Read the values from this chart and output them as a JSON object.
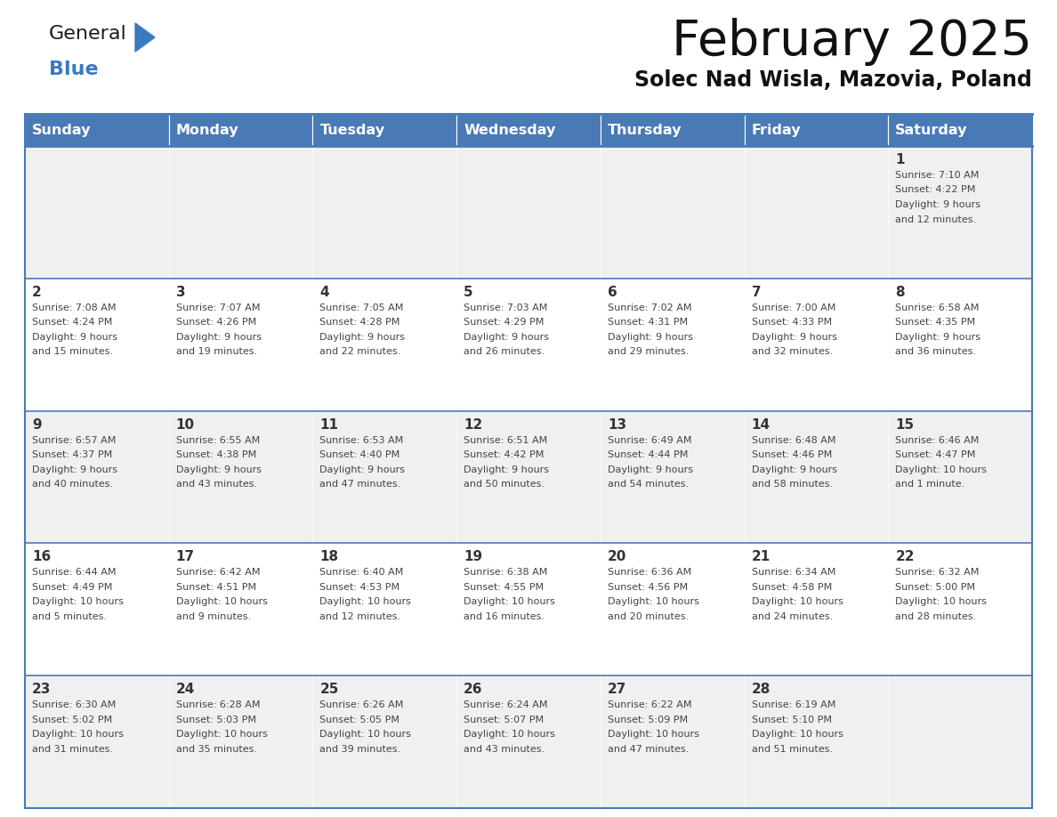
{
  "title": "February 2025",
  "subtitle": "Solec Nad Wisla, Mazovia, Poland",
  "header_bg": "#4a7ab5",
  "header_text_color": "#ffffff",
  "days_of_week": [
    "Sunday",
    "Monday",
    "Tuesday",
    "Wednesday",
    "Thursday",
    "Friday",
    "Saturday"
  ],
  "row_bg_odd": "#f0f0f0",
  "row_bg_even": "#ffffff",
  "cell_border_color": "#4a7ab5",
  "day_number_color": "#333333",
  "info_text_color": "#444444",
  "calendar_data": [
    [
      {
        "day": null,
        "info": ""
      },
      {
        "day": null,
        "info": ""
      },
      {
        "day": null,
        "info": ""
      },
      {
        "day": null,
        "info": ""
      },
      {
        "day": null,
        "info": ""
      },
      {
        "day": null,
        "info": ""
      },
      {
        "day": 1,
        "info": "Sunrise: 7:10 AM\nSunset: 4:22 PM\nDaylight: 9 hours\nand 12 minutes."
      }
    ],
    [
      {
        "day": 2,
        "info": "Sunrise: 7:08 AM\nSunset: 4:24 PM\nDaylight: 9 hours\nand 15 minutes."
      },
      {
        "day": 3,
        "info": "Sunrise: 7:07 AM\nSunset: 4:26 PM\nDaylight: 9 hours\nand 19 minutes."
      },
      {
        "day": 4,
        "info": "Sunrise: 7:05 AM\nSunset: 4:28 PM\nDaylight: 9 hours\nand 22 minutes."
      },
      {
        "day": 5,
        "info": "Sunrise: 7:03 AM\nSunset: 4:29 PM\nDaylight: 9 hours\nand 26 minutes."
      },
      {
        "day": 6,
        "info": "Sunrise: 7:02 AM\nSunset: 4:31 PM\nDaylight: 9 hours\nand 29 minutes."
      },
      {
        "day": 7,
        "info": "Sunrise: 7:00 AM\nSunset: 4:33 PM\nDaylight: 9 hours\nand 32 minutes."
      },
      {
        "day": 8,
        "info": "Sunrise: 6:58 AM\nSunset: 4:35 PM\nDaylight: 9 hours\nand 36 minutes."
      }
    ],
    [
      {
        "day": 9,
        "info": "Sunrise: 6:57 AM\nSunset: 4:37 PM\nDaylight: 9 hours\nand 40 minutes."
      },
      {
        "day": 10,
        "info": "Sunrise: 6:55 AM\nSunset: 4:38 PM\nDaylight: 9 hours\nand 43 minutes."
      },
      {
        "day": 11,
        "info": "Sunrise: 6:53 AM\nSunset: 4:40 PM\nDaylight: 9 hours\nand 47 minutes."
      },
      {
        "day": 12,
        "info": "Sunrise: 6:51 AM\nSunset: 4:42 PM\nDaylight: 9 hours\nand 50 minutes."
      },
      {
        "day": 13,
        "info": "Sunrise: 6:49 AM\nSunset: 4:44 PM\nDaylight: 9 hours\nand 54 minutes."
      },
      {
        "day": 14,
        "info": "Sunrise: 6:48 AM\nSunset: 4:46 PM\nDaylight: 9 hours\nand 58 minutes."
      },
      {
        "day": 15,
        "info": "Sunrise: 6:46 AM\nSunset: 4:47 PM\nDaylight: 10 hours\nand 1 minute."
      }
    ],
    [
      {
        "day": 16,
        "info": "Sunrise: 6:44 AM\nSunset: 4:49 PM\nDaylight: 10 hours\nand 5 minutes."
      },
      {
        "day": 17,
        "info": "Sunrise: 6:42 AM\nSunset: 4:51 PM\nDaylight: 10 hours\nand 9 minutes."
      },
      {
        "day": 18,
        "info": "Sunrise: 6:40 AM\nSunset: 4:53 PM\nDaylight: 10 hours\nand 12 minutes."
      },
      {
        "day": 19,
        "info": "Sunrise: 6:38 AM\nSunset: 4:55 PM\nDaylight: 10 hours\nand 16 minutes."
      },
      {
        "day": 20,
        "info": "Sunrise: 6:36 AM\nSunset: 4:56 PM\nDaylight: 10 hours\nand 20 minutes."
      },
      {
        "day": 21,
        "info": "Sunrise: 6:34 AM\nSunset: 4:58 PM\nDaylight: 10 hours\nand 24 minutes."
      },
      {
        "day": 22,
        "info": "Sunrise: 6:32 AM\nSunset: 5:00 PM\nDaylight: 10 hours\nand 28 minutes."
      }
    ],
    [
      {
        "day": 23,
        "info": "Sunrise: 6:30 AM\nSunset: 5:02 PM\nDaylight: 10 hours\nand 31 minutes."
      },
      {
        "day": 24,
        "info": "Sunrise: 6:28 AM\nSunset: 5:03 PM\nDaylight: 10 hours\nand 35 minutes."
      },
      {
        "day": 25,
        "info": "Sunrise: 6:26 AM\nSunset: 5:05 PM\nDaylight: 10 hours\nand 39 minutes."
      },
      {
        "day": 26,
        "info": "Sunrise: 6:24 AM\nSunset: 5:07 PM\nDaylight: 10 hours\nand 43 minutes."
      },
      {
        "day": 27,
        "info": "Sunrise: 6:22 AM\nSunset: 5:09 PM\nDaylight: 10 hours\nand 47 minutes."
      },
      {
        "day": 28,
        "info": "Sunrise: 6:19 AM\nSunset: 5:10 PM\nDaylight: 10 hours\nand 51 minutes."
      },
      {
        "day": null,
        "info": ""
      }
    ]
  ],
  "logo_general_color": "#1a1a1a",
  "logo_blue_color": "#3a7abf",
  "logo_triangle_color": "#3a7abf",
  "fig_width": 11.88,
  "fig_height": 9.18,
  "dpi": 100
}
